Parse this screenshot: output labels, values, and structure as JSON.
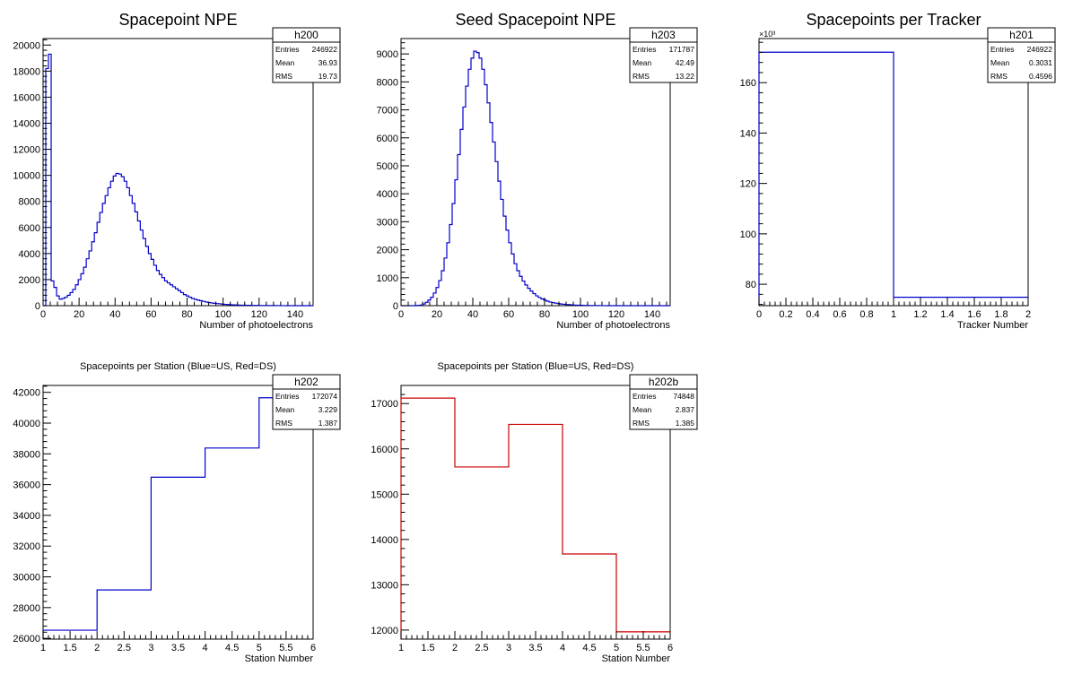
{
  "chart_data": [
    {
      "type": "bar",
      "title": "Spacepoint NPE",
      "xlabel": "Number of photoelectrons",
      "ylabel": "",
      "xlim": [
        0,
        150
      ],
      "ylim": [
        0,
        20500
      ],
      "xticks": [
        0,
        20,
        40,
        60,
        80,
        100,
        120,
        140
      ],
      "yticks": [
        0,
        2000,
        4000,
        6000,
        8000,
        10000,
        12000,
        14000,
        16000,
        18000,
        20000
      ],
      "y_exponent": "",
      "bin_width": 1.5,
      "bin_start": 0,
      "color": "#0000cc",
      "stats": {
        "name": "h200",
        "rows": [
          [
            "Entries",
            "246922"
          ],
          [
            "Mean",
            "36.93"
          ],
          [
            "RMS",
            "19.73"
          ]
        ]
      },
      "values": [
        0,
        18200,
        19300,
        1900,
        1400,
        750,
        500,
        550,
        650,
        800,
        1000,
        1250,
        1600,
        2000,
        2450,
        2950,
        3600,
        4200,
        4900,
        5600,
        6400,
        7150,
        7850,
        8450,
        9050,
        9550,
        9950,
        10150,
        10100,
        9900,
        9550,
        9050,
        8450,
        7850,
        7200,
        6500,
        5800,
        5150,
        4550,
        4000,
        3550,
        3100,
        2700,
        2400,
        2150,
        1900,
        1750,
        1600,
        1450,
        1300,
        1150,
        1000,
        850,
        750,
        650,
        550,
        480,
        430,
        380,
        330,
        280,
        240,
        210,
        180,
        160,
        140,
        120,
        100,
        85,
        70,
        60,
        50,
        45,
        40,
        35,
        30,
        25,
        20,
        18,
        16,
        14,
        12,
        10,
        9,
        8,
        7,
        6,
        5,
        4,
        3,
        2,
        2,
        1,
        1,
        1,
        0,
        0,
        0,
        0,
        0
      ]
    },
    {
      "type": "bar",
      "title": "Seed Spacepoint NPE",
      "xlabel": "Number of photoelectrons",
      "ylabel": "",
      "xlim": [
        0,
        150
      ],
      "ylim": [
        0,
        9550
      ],
      "xticks": [
        0,
        20,
        40,
        60,
        80,
        100,
        120,
        140
      ],
      "yticks": [
        0,
        1000,
        2000,
        3000,
        4000,
        5000,
        6000,
        7000,
        8000,
        9000
      ],
      "y_exponent": "",
      "bin_width": 1.5,
      "bin_start": 0,
      "color": "#0000cc",
      "stats": {
        "name": "h203",
        "rows": [
          [
            "Entries",
            "171787"
          ],
          [
            "Mean",
            "42.49"
          ],
          [
            "RMS",
            "13.22"
          ]
        ]
      },
      "values": [
        0,
        0,
        0,
        0,
        0,
        0,
        10,
        20,
        60,
        120,
        200,
        300,
        450,
        650,
        900,
        1250,
        1700,
        2250,
        2900,
        3650,
        4500,
        5400,
        6300,
        7100,
        7850,
        8450,
        8850,
        9100,
        9050,
        8850,
        8450,
        7900,
        7250,
        6550,
        5850,
        5150,
        4450,
        3800,
        3200,
        2700,
        2250,
        1850,
        1500,
        1250,
        1050,
        880,
        740,
        620,
        520,
        430,
        350,
        290,
        240,
        200,
        160,
        130,
        110,
        90,
        75,
        60,
        50,
        42,
        35,
        28,
        22,
        18,
        15,
        12,
        10,
        8,
        6,
        5,
        4,
        3,
        2,
        2,
        1,
        1,
        1,
        0,
        0,
        0,
        0,
        0,
        0,
        0,
        0,
        0,
        0,
        0,
        0,
        0,
        0,
        0,
        0,
        0,
        0,
        0,
        0,
        0
      ]
    },
    {
      "type": "bar",
      "title": "Spacepoints per Tracker",
      "xlabel": "Tracker Number",
      "ylabel": "",
      "xlim": [
        0,
        2
      ],
      "ylim": [
        71.5,
        177.5
      ],
      "xticks": [
        0,
        0.2,
        0.4,
        0.6,
        0.8,
        1,
        1.2,
        1.4,
        1.6,
        1.8,
        2
      ],
      "yticks": [
        80,
        100,
        120,
        140,
        160
      ],
      "y_exponent": "×10³",
      "bin_width": 1,
      "bin_start": 0,
      "color": "#0000cc",
      "stats": {
        "name": "h201",
        "rows": [
          [
            "Entries",
            "246922"
          ],
          [
            "Mean",
            "0.3031"
          ],
          [
            "RMS",
            "0.4596"
          ]
        ]
      },
      "values": [
        172.074,
        74.848
      ]
    },
    {
      "type": "bar",
      "title": "Spacepoints per Station (Blue=US, Red=DS)",
      "xlabel": "Station Number",
      "ylabel": "",
      "xlim": [
        1,
        6
      ],
      "ylim": [
        25950,
        42450
      ],
      "xticks": [
        1,
        1.5,
        2,
        2.5,
        3,
        3.5,
        4,
        4.5,
        5,
        5.5,
        6
      ],
      "yticks": [
        26000,
        28000,
        30000,
        32000,
        34000,
        36000,
        38000,
        40000,
        42000
      ],
      "y_exponent": "",
      "bin_width": 1,
      "bin_start": 1,
      "color": "#0000cc",
      "stats": {
        "name": "h202",
        "rows": [
          [
            "Entries",
            "172074"
          ],
          [
            "Mean",
            "3.229"
          ],
          [
            "RMS",
            "1.387"
          ]
        ]
      },
      "values": [
        26530,
        29150,
        36480,
        38380,
        41650
      ]
    },
    {
      "type": "bar",
      "title": "Spacepoints per Station (Blue=US, Red=DS)",
      "xlabel": "Station Number",
      "ylabel": "",
      "xlim": [
        1,
        6
      ],
      "ylim": [
        11800,
        17400
      ],
      "xticks": [
        1,
        1.5,
        2,
        2.5,
        3,
        3.5,
        4,
        4.5,
        5,
        5.5,
        6
      ],
      "yticks": [
        12000,
        13000,
        14000,
        15000,
        16000,
        17000
      ],
      "y_exponent": "",
      "bin_width": 1,
      "bin_start": 1,
      "color": "#cc0000",
      "stats": {
        "name": "h202b",
        "rows": [
          [
            "Entries",
            "74848"
          ],
          [
            "Mean",
            "2.837"
          ],
          [
            "RMS",
            "1.385"
          ]
        ]
      },
      "values": [
        17120,
        15600,
        16540,
        13680,
        11960
      ]
    }
  ]
}
